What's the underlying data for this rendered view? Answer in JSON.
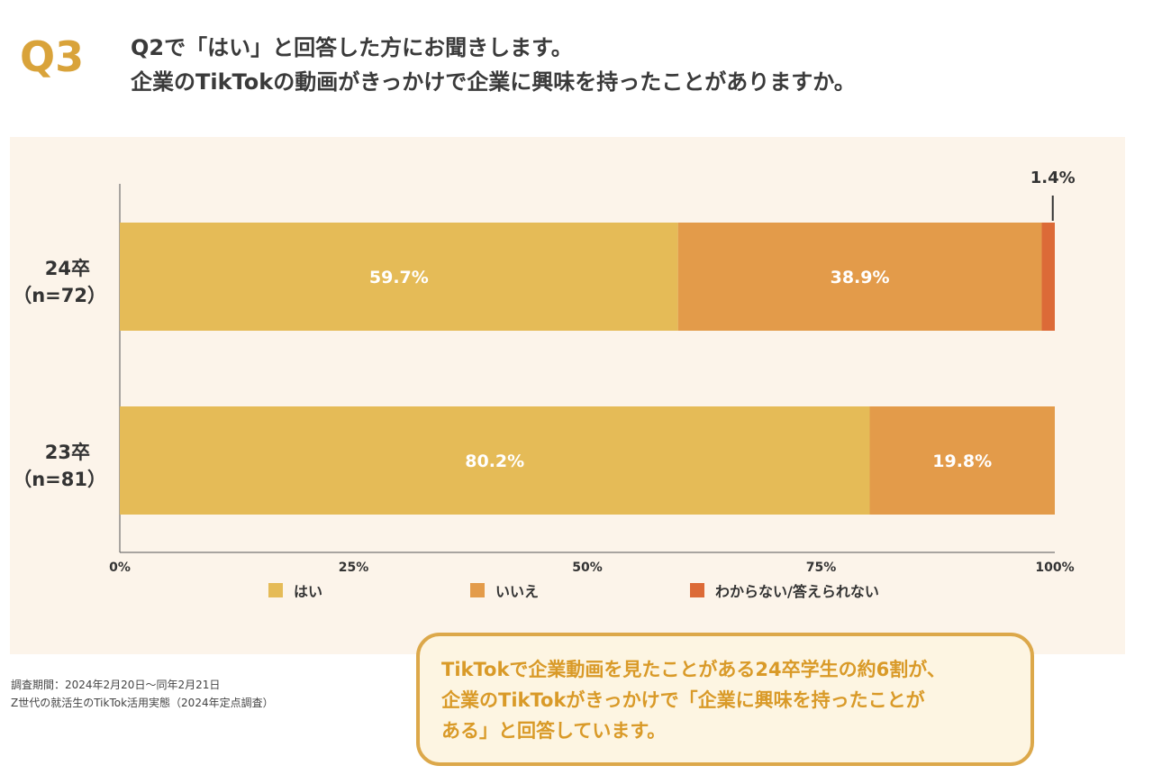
{
  "question": {
    "number": "Q3",
    "line1": "Q2で「はい」と回答した方にお聞きします。",
    "line2": "企業のTikTokの動画がきっかけで企業に興味を持ったことがありますか。"
  },
  "colors": {
    "yes": "#e5bb57",
    "no": "#e39b4a",
    "unknown": "#dc6a37"
  },
  "chart_data": {
    "type": "bar",
    "orientation": "horizontal",
    "stacked": true,
    "categories": [
      {
        "label": "24卒",
        "sub": "（n=72）"
      },
      {
        "label": "23卒",
        "sub": "（n=81）"
      }
    ],
    "series": [
      {
        "name": "はい",
        "values": [
          59.7,
          80.2
        ],
        "labels": [
          "59.7%",
          "80.2%"
        ]
      },
      {
        "name": "いいえ",
        "values": [
          38.9,
          19.8
        ],
        "labels": [
          "38.9%",
          "19.8%"
        ]
      },
      {
        "name": "わからない/答えられない",
        "values": [
          1.4,
          0
        ],
        "labels": [
          "1.4%",
          ""
        ]
      }
    ],
    "xlim": [
      0,
      100
    ],
    "ticks": [
      0,
      25,
      50,
      75,
      100
    ],
    "tick_labels": [
      "0%",
      "25%",
      "50%",
      "75%",
      "100%"
    ],
    "legend": [
      "はい",
      "いいえ",
      "わからない/答えられない"
    ],
    "legend_position": "bottom"
  },
  "note": {
    "line1": "調査期間：2024年2月20日〜同年2月21日",
    "line2": "Z世代の就活生のTikTok活用実態（2024年定点調査）"
  },
  "callout": {
    "line1": "TikTokで企業動画を見たことがある24卒学生の約6割が、",
    "line2": "企業のTikTokがきっかけで「企業に興味を持ったことが",
    "line3": "ある」と回答しています。"
  }
}
